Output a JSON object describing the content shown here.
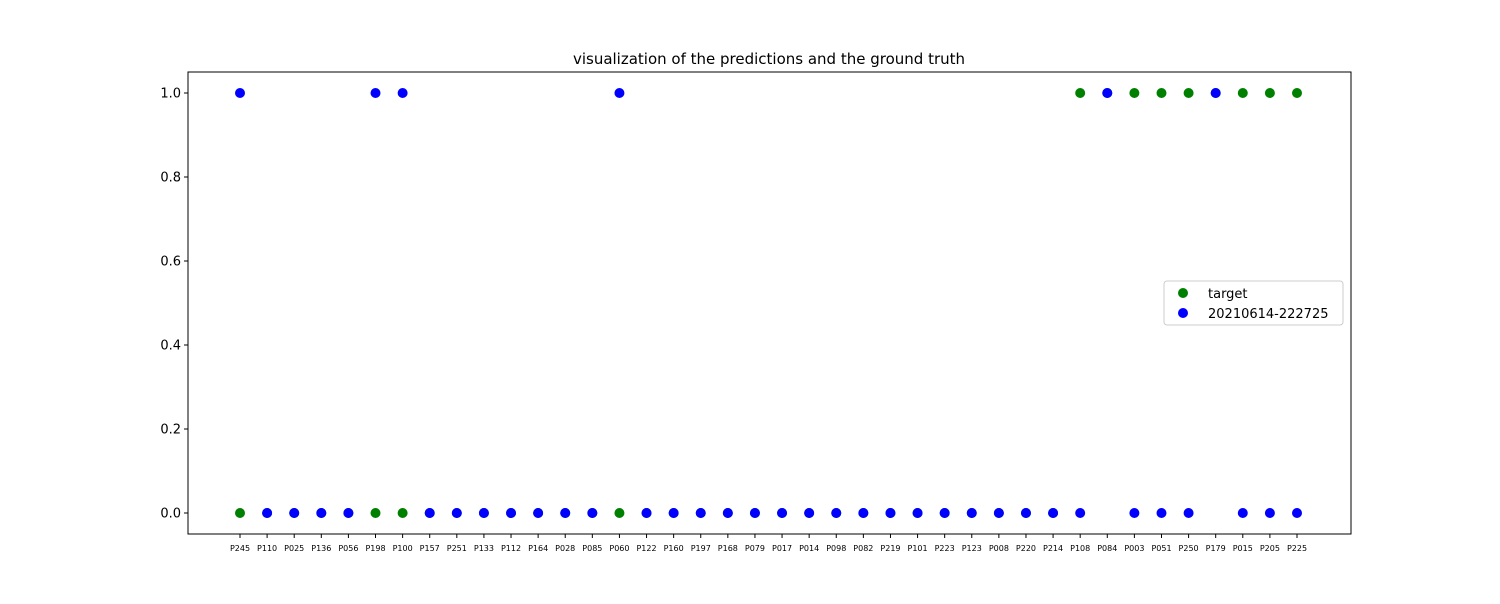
{
  "chart_data": {
    "type": "scatter",
    "title": "visualization of the predictions and the ground truth",
    "xlabel": "",
    "ylabel": "",
    "categories": [
      "P245",
      "P110",
      "P025",
      "P136",
      "P056",
      "P198",
      "P100",
      "P157",
      "P251",
      "P133",
      "P112",
      "P164",
      "P028",
      "P085",
      "P060",
      "P122",
      "P160",
      "P197",
      "P168",
      "P079",
      "P017",
      "P014",
      "P098",
      "P082",
      "P219",
      "P101",
      "P223",
      "P123",
      "P008",
      "P220",
      "P214",
      "P108",
      "P084",
      "P003",
      "P051",
      "P250",
      "P179",
      "P015",
      "P205",
      "P225"
    ],
    "ylim": [
      -0.05,
      1.05
    ],
    "yticks": [
      0.0,
      0.2,
      0.4,
      0.6,
      0.8,
      1.0
    ],
    "ytick_labels": [
      "0.0",
      "0.2",
      "0.4",
      "0.6",
      "0.8",
      "1.0"
    ],
    "series": [
      {
        "name": "target",
        "color": "#008000",
        "values": [
          0,
          0,
          0,
          0,
          0,
          0,
          0,
          0,
          0,
          0,
          0,
          0,
          0,
          0,
          0,
          0,
          0,
          0,
          0,
          0,
          0,
          0,
          0,
          0,
          0,
          0,
          0,
          0,
          0,
          0,
          0,
          1,
          1,
          1,
          1,
          1,
          1,
          1,
          1,
          1
        ]
      },
      {
        "name": "20210614-222725",
        "color": "#0000ff",
        "values": [
          1,
          0,
          0,
          0,
          0,
          1,
          1,
          0,
          0,
          0,
          0,
          0,
          0,
          0,
          1,
          0,
          0,
          0,
          0,
          0,
          0,
          0,
          0,
          0,
          0,
          0,
          0,
          0,
          0,
          0,
          0,
          0,
          1,
          0,
          0,
          0,
          1,
          0,
          0,
          0
        ]
      }
    ],
    "legend_position": "center-right",
    "grid": false
  }
}
